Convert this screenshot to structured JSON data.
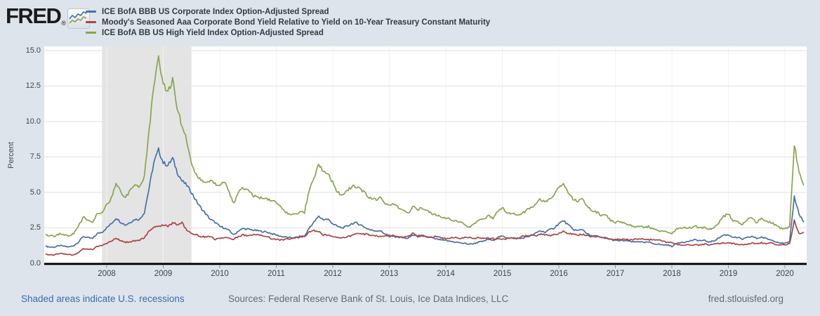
{
  "logo": {
    "text": "FRED",
    "registered": "®",
    "icon": "fred-sparkline-icon"
  },
  "footer": {
    "recession_note": "Shaded areas indicate U.S. recessions",
    "sources": "Sources: Federal Reserve Bank of St. Louis, Ice Data Indices, LLC",
    "site": "fred.stlouisfed.org"
  },
  "colors": {
    "background": "#dde4ec",
    "plot_background": "#ffffff",
    "recession_band": "#e4e4e4",
    "gridline": "#e2e2e2",
    "axis_line": "#000000",
    "series_blue": "#4572a7",
    "series_red": "#aa4643",
    "series_green": "#89a54e",
    "link": "#3c6da8"
  },
  "chart_data": {
    "type": "line",
    "title": "",
    "xlabel": "",
    "ylabel": "Percent",
    "ylim": [
      0,
      15
    ],
    "y_ticks": [
      "0.0",
      "2.5",
      "5.0",
      "7.5",
      "10.0",
      "12.5",
      "15.0"
    ],
    "x_ticks": [
      2008,
      2009,
      2010,
      2011,
      2012,
      2013,
      2014,
      2015,
      2016,
      2017,
      2018,
      2019,
      2020
    ],
    "grid": true,
    "legend_position": "top-left",
    "x_start": 2006.9167,
    "x_step": 0.0833333,
    "x_unit": "decimal-year, monthly samples Dec 2006 - May 2020",
    "recessions": [
      {
        "start": 2007.9167,
        "end": 2009.5
      }
    ],
    "series": [
      {
        "name": "ICE BofA BBB US Corporate Index Option-Adjusted Spread",
        "color": "#4572a7",
        "values": [
          1.2,
          1.15,
          1.15,
          1.25,
          1.2,
          1.15,
          1.25,
          1.5,
          1.9,
          1.8,
          1.75,
          2.1,
          2.2,
          2.5,
          2.8,
          3.2,
          2.9,
          2.7,
          2.9,
          3.1,
          3.1,
          3.6,
          5.3,
          7.1,
          8.0,
          7.1,
          6.9,
          7.4,
          6.4,
          5.8,
          5.5,
          5.0,
          4.4,
          3.9,
          3.5,
          3.1,
          2.9,
          2.6,
          2.5,
          2.3,
          2.0,
          2.3,
          2.45,
          2.4,
          2.35,
          2.3,
          2.25,
          2.2,
          2.1,
          2.0,
          1.9,
          1.85,
          1.8,
          1.8,
          1.9,
          1.9,
          2.5,
          2.9,
          3.3,
          3.1,
          3.1,
          2.8,
          2.6,
          2.5,
          2.6,
          2.8,
          2.85,
          2.7,
          2.5,
          2.35,
          2.3,
          2.3,
          2.1,
          1.95,
          1.9,
          1.85,
          1.8,
          1.75,
          2.0,
          1.9,
          1.95,
          1.85,
          1.8,
          1.7,
          1.65,
          1.6,
          1.55,
          1.5,
          1.45,
          1.4,
          1.35,
          1.4,
          1.5,
          1.55,
          1.7,
          1.6,
          1.85,
          1.9,
          1.8,
          1.8,
          1.75,
          1.75,
          1.85,
          1.95,
          2.1,
          2.3,
          2.2,
          2.35,
          2.5,
          2.8,
          3.0,
          2.7,
          2.4,
          2.3,
          2.4,
          2.1,
          1.9,
          1.9,
          1.8,
          1.8,
          1.7,
          1.6,
          1.6,
          1.6,
          1.55,
          1.5,
          1.55,
          1.45,
          1.5,
          1.4,
          1.35,
          1.3,
          1.3,
          1.2,
          1.4,
          1.5,
          1.5,
          1.6,
          1.65,
          1.6,
          1.6,
          1.5,
          1.6,
          1.8,
          2.0,
          2.0,
          1.85,
          1.8,
          1.7,
          1.8,
          1.9,
          1.75,
          1.85,
          1.75,
          1.65,
          1.55,
          1.45,
          1.4,
          1.5,
          4.7,
          3.5,
          2.9
        ]
      },
      {
        "name": "Moody's Seasoned Aaa Corporate Bond Yield Relative to Yield on 10-Year Treasury Constant Maturity",
        "color": "#aa4643",
        "values": [
          0.65,
          0.6,
          0.6,
          0.7,
          0.65,
          0.6,
          0.6,
          0.75,
          1.0,
          1.0,
          1.0,
          1.2,
          1.25,
          1.4,
          1.6,
          1.75,
          1.6,
          1.5,
          1.5,
          1.6,
          1.65,
          1.8,
          2.3,
          2.55,
          2.6,
          2.7,
          2.6,
          2.85,
          2.75,
          2.85,
          2.3,
          2.15,
          2.0,
          1.9,
          1.85,
          1.9,
          1.7,
          1.75,
          1.8,
          1.75,
          1.7,
          1.9,
          2.0,
          1.95,
          2.05,
          2.0,
          1.95,
          1.9,
          1.75,
          1.7,
          1.65,
          1.7,
          1.7,
          1.8,
          1.85,
          1.9,
          2.2,
          2.3,
          2.25,
          2.0,
          2.0,
          1.9,
          1.85,
          1.8,
          1.85,
          1.95,
          2.05,
          2.1,
          2.05,
          2.0,
          1.95,
          1.9,
          1.95,
          1.9,
          1.95,
          1.9,
          1.85,
          1.9,
          2.1,
          1.95,
          1.9,
          1.85,
          1.85,
          1.9,
          1.8,
          1.75,
          1.8,
          1.8,
          1.75,
          1.85,
          1.8,
          1.75,
          1.8,
          1.75,
          1.8,
          1.75,
          1.7,
          1.7,
          1.75,
          1.8,
          1.75,
          1.9,
          1.95,
          2.0,
          1.95,
          2.05,
          2.0,
          1.95,
          2.0,
          2.1,
          2.25,
          2.1,
          2.05,
          2.0,
          2.05,
          1.95,
          1.9,
          1.9,
          1.85,
          1.8,
          1.7,
          1.65,
          1.7,
          1.7,
          1.65,
          1.7,
          1.7,
          1.7,
          1.65,
          1.7,
          1.65,
          1.6,
          1.5,
          1.45,
          1.35,
          1.3,
          1.3,
          1.3,
          1.3,
          1.3,
          1.35,
          1.3,
          1.35,
          1.4,
          1.45,
          1.45,
          1.4,
          1.35,
          1.3,
          1.35,
          1.45,
          1.4,
          1.45,
          1.4,
          1.45,
          1.35,
          1.3,
          1.3,
          1.4,
          3.0,
          2.1,
          2.2
        ]
      },
      {
        "name": "ICE BofA BB US High Yield Index Option-Adjusted Spread",
        "color": "#89a54e",
        "values": [
          2.0,
          1.95,
          1.9,
          2.1,
          2.0,
          1.95,
          2.1,
          2.6,
          3.3,
          3.0,
          2.95,
          3.5,
          3.55,
          4.1,
          4.6,
          5.7,
          5.0,
          4.7,
          5.1,
          5.6,
          5.4,
          6.1,
          9.3,
          12.6,
          14.6,
          12.6,
          12.1,
          12.9,
          11.0,
          9.6,
          8.7,
          6.9,
          6.2,
          5.9,
          5.7,
          5.8,
          5.6,
          5.5,
          5.8,
          5.0,
          4.2,
          5.0,
          5.35,
          5.1,
          4.8,
          4.7,
          4.6,
          4.5,
          4.4,
          4.3,
          3.9,
          3.6,
          3.4,
          3.5,
          3.6,
          3.6,
          5.2,
          6.0,
          7.0,
          6.4,
          6.4,
          5.7,
          5.0,
          4.8,
          5.1,
          5.4,
          5.4,
          5.2,
          4.9,
          4.6,
          4.5,
          4.6,
          4.3,
          4.1,
          4.2,
          3.9,
          3.8,
          3.5,
          4.1,
          3.8,
          3.9,
          3.7,
          3.5,
          3.4,
          3.3,
          3.2,
          3.1,
          3.0,
          2.9,
          2.75,
          2.55,
          2.8,
          3.0,
          3.1,
          3.4,
          3.2,
          3.7,
          3.9,
          3.6,
          3.5,
          3.4,
          3.5,
          3.7,
          3.9,
          4.2,
          4.5,
          4.3,
          4.5,
          4.9,
          5.3,
          5.7,
          5.0,
          4.5,
          4.4,
          4.5,
          4.0,
          3.7,
          3.6,
          3.4,
          3.4,
          3.0,
          2.9,
          2.9,
          2.8,
          2.7,
          2.6,
          2.65,
          2.5,
          2.6,
          2.4,
          2.3,
          2.3,
          2.2,
          2.1,
          2.4,
          2.5,
          2.5,
          2.5,
          2.6,
          2.5,
          2.5,
          2.4,
          2.5,
          2.9,
          3.3,
          3.5,
          3.0,
          2.9,
          2.75,
          3.1,
          3.2,
          2.9,
          3.2,
          3.0,
          2.9,
          2.7,
          2.5,
          2.4,
          2.6,
          8.4,
          6.4,
          5.5
        ]
      }
    ]
  }
}
